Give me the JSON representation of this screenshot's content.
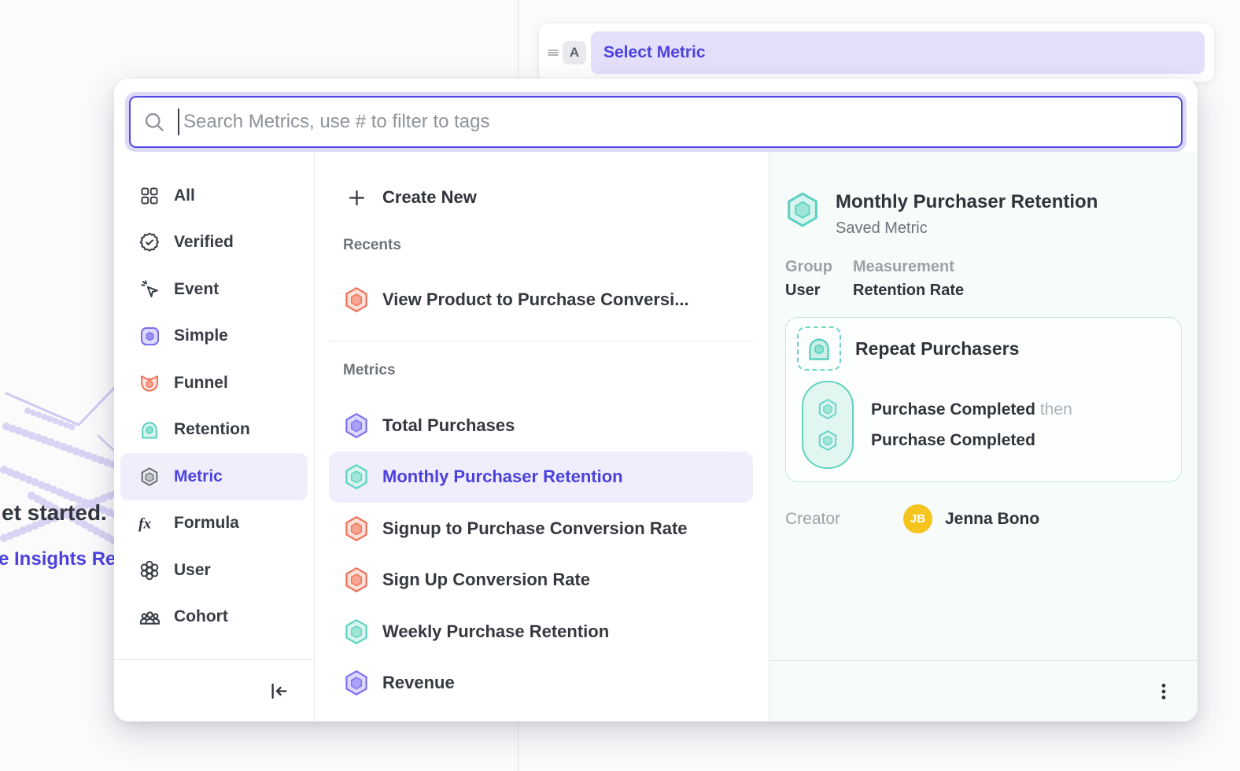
{
  "background": {
    "heading_fragment": "et started.",
    "link_fragment": "e Insights Re"
  },
  "query_builder": {
    "drag_icon": "drag-handle",
    "block_label": "A",
    "selector_label": "Select Metric"
  },
  "search": {
    "icon": "magnifier",
    "placeholder": "Search Metrics, use # to filter to tags",
    "value": ""
  },
  "sidebar": {
    "items": [
      {
        "label": "All",
        "icon": "grid",
        "selected": false
      },
      {
        "label": "Verified",
        "icon": "verified",
        "selected": false
      },
      {
        "label": "Event",
        "icon": "event",
        "selected": false
      },
      {
        "label": "Simple",
        "icon": "simple",
        "selected": false
      },
      {
        "label": "Funnel",
        "icon": "funnel",
        "selected": false
      },
      {
        "label": "Retention",
        "icon": "retention",
        "selected": false
      },
      {
        "label": "Metric",
        "icon": "metric",
        "selected": true
      },
      {
        "label": "Formula",
        "icon": "formula",
        "selected": false
      },
      {
        "label": "User",
        "icon": "user",
        "selected": false
      },
      {
        "label": "Cohort",
        "icon": "cohort",
        "selected": false
      }
    ],
    "footer_icon": "collapse-left"
  },
  "list": {
    "create_new": {
      "label": "Create New",
      "icon": "plus"
    },
    "sections": [
      {
        "title": "Recents",
        "items": [
          {
            "label": "View Product to Purchase Conversi...",
            "icon_color": "coral",
            "selected": false
          }
        ]
      },
      {
        "title": "Metrics",
        "items": [
          {
            "label": "Total Purchases",
            "icon_color": "purple",
            "selected": false
          },
          {
            "label": "Monthly Purchaser Retention",
            "icon_color": "teal",
            "selected": true
          },
          {
            "label": "Signup to Purchase Conversion Rate",
            "icon_color": "coral",
            "selected": false
          },
          {
            "label": "Sign Up Conversion Rate",
            "icon_color": "coral",
            "selected": false
          },
          {
            "label": "Weekly Purchase Retention",
            "icon_color": "teal",
            "selected": false
          },
          {
            "label": "Revenue",
            "icon_color": "purple",
            "selected": false
          }
        ]
      }
    ]
  },
  "details": {
    "icon_color": "teal",
    "title": "Monthly Purchaser Retention",
    "subtitle": "Saved Metric",
    "meta": [
      {
        "label": "Group",
        "value": "User"
      },
      {
        "label": "Measurement",
        "value": "Retention Rate"
      }
    ],
    "definition": {
      "icon": "arch",
      "title": "Repeat Purchasers",
      "steps": [
        {
          "event": "Purchase Completed",
          "connector": "then"
        },
        {
          "event": "Purchase Completed",
          "connector": ""
        }
      ]
    },
    "creator": {
      "label": "Creator",
      "initials": "JB",
      "name": "Jenna Bono",
      "avatar_color": "#F5C51E"
    },
    "footer_icon": "kebab-menu"
  },
  "colors": {
    "accent_purple": "#4B42DD",
    "accent_purple_bg": "#E4E0FB",
    "selected_row_bg": "#F0EDFC",
    "teal": "#5CD2C2",
    "coral": "#EE7058",
    "icon_purple": "#7D70F1",
    "panel_bg": "#F7FBFA"
  }
}
